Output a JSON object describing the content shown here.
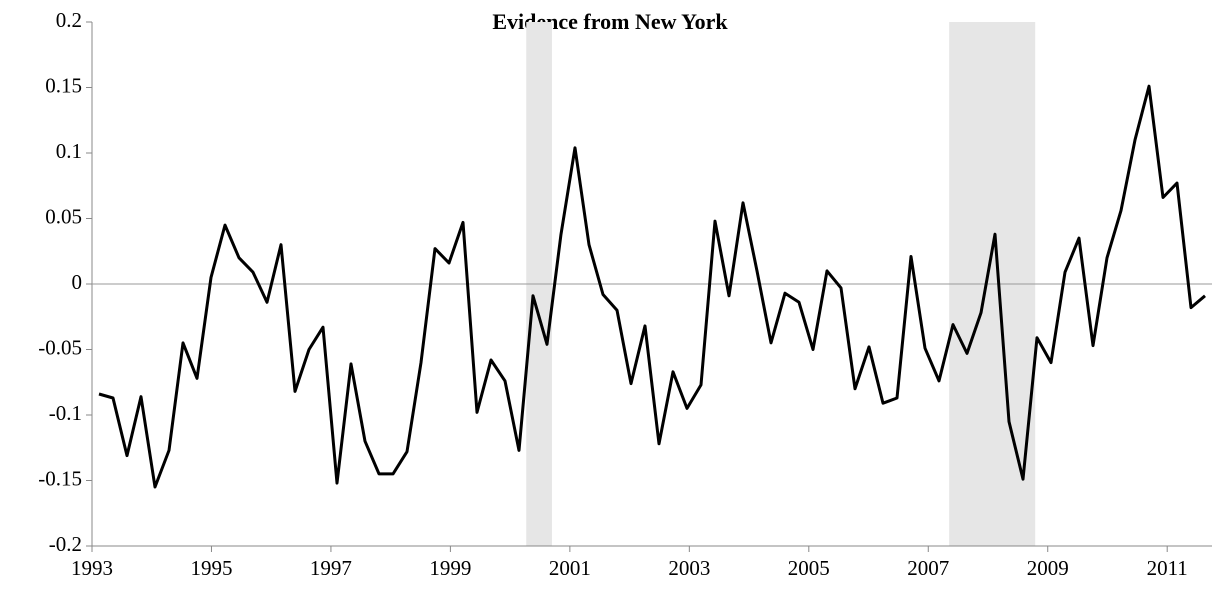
{
  "chart_data": {
    "type": "line",
    "title": "Evidence from New York",
    "color": "#000000",
    "values": [
      -0.084,
      -0.087,
      -0.131,
      -0.086,
      -0.155,
      -0.127,
      -0.045,
      -0.072,
      0.005,
      0.045,
      0.02,
      0.009,
      -0.014,
      0.03,
      -0.082,
      -0.05,
      -0.033,
      -0.152,
      -0.061,
      -0.12,
      -0.145,
      -0.145,
      -0.128,
      -0.06,
      0.027,
      0.016,
      0.047,
      -0.098,
      -0.058,
      -0.074,
      -0.127,
      -0.009,
      -0.046,
      0.038,
      0.104,
      0.03,
      -0.008,
      -0.02,
      -0.076,
      -0.032,
      -0.122,
      -0.067,
      -0.095,
      -0.077,
      0.048,
      -0.009,
      0.062,
      0.01,
      -0.045,
      -0.007,
      -0.014,
      -0.05,
      0.01,
      -0.003,
      -0.08,
      -0.048,
      -0.091,
      -0.087,
      0.021,
      -0.049,
      -0.074,
      -0.031,
      -0.053,
      -0.022,
      0.038,
      -0.105,
      -0.149,
      -0.041,
      -0.06,
      0.009,
      0.035,
      -0.047,
      0.02,
      0.056,
      0.11,
      0.151,
      0.066,
      0.077,
      -0.018,
      -0.009
    ],
    "xlim": [
      1993,
      2011.75
    ],
    "xticks": [
      1993,
      1995,
      1997,
      1999,
      2001,
      2003,
      2005,
      2007,
      2009,
      2011
    ],
    "ylim": [
      -0.2,
      0.2
    ],
    "yticks": [
      -0.2,
      -0.15,
      -0.1,
      -0.05,
      0,
      0.05,
      0.1,
      0.15,
      0.2
    ],
    "shaded_regions": [
      [
        2000.27,
        2000.7
      ],
      [
        2007.35,
        2008.79
      ]
    ],
    "shade_color": "#e6e6e6"
  }
}
